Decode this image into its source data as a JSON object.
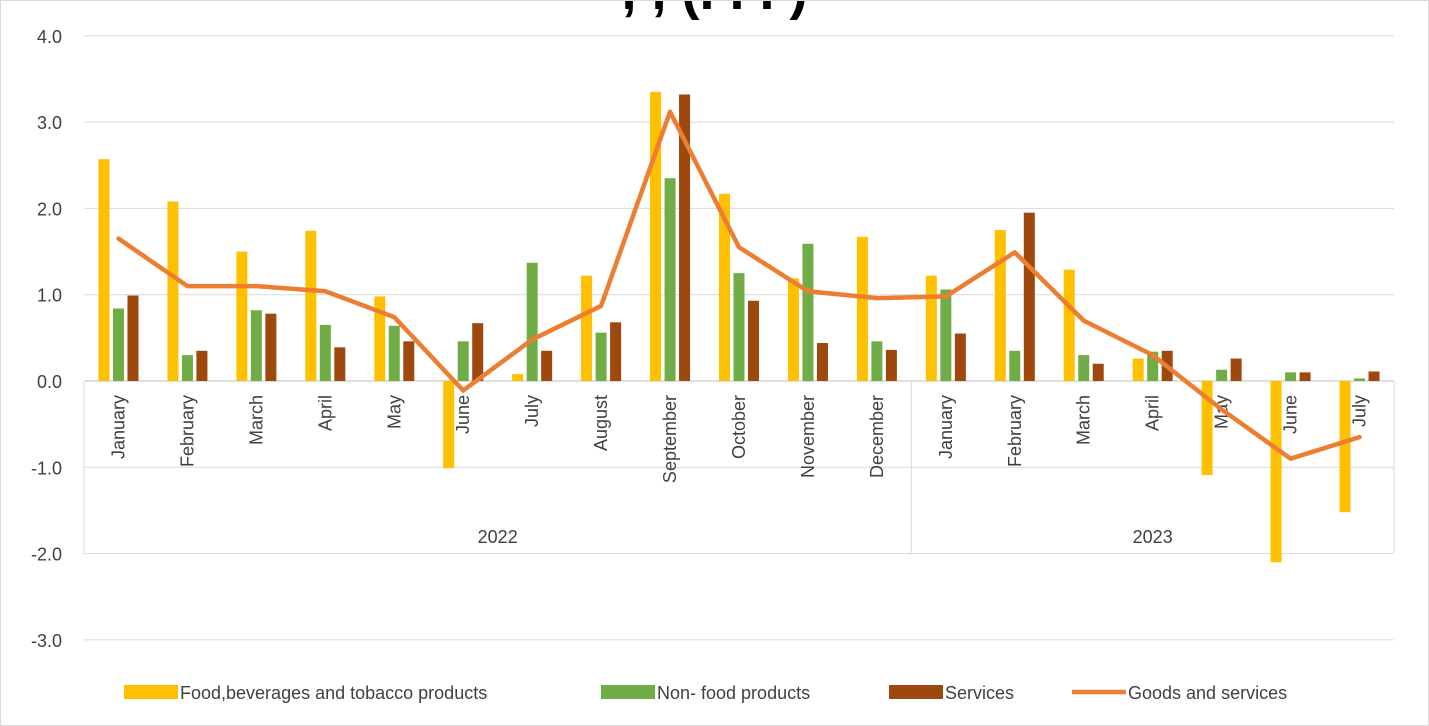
{
  "chart_data": {
    "type": "bar",
    "title": ", , (. . . )",
    "categories": [
      "January",
      "February",
      "March",
      "April",
      "May",
      "June",
      "July",
      "August",
      "September",
      "October",
      "November",
      "December",
      "January",
      "February",
      "March",
      "April",
      "May",
      "June",
      "July"
    ],
    "year_groups": [
      {
        "label": "2022",
        "count": 12
      },
      {
        "label": "2023",
        "count": 7
      }
    ],
    "y_ticks": [
      "4.0",
      "3.0",
      "2.0",
      "1.0",
      "0.0",
      "-1.0",
      "-2.0",
      "-3.0"
    ],
    "ylim": [
      -3,
      4
    ],
    "grid": true,
    "legend_position": "bottom",
    "series": [
      {
        "name": "Food,beverages and tobacco products",
        "type": "bar",
        "color": "#FFC000",
        "values": [
          2.57,
          2.08,
          1.5,
          1.74,
          0.98,
          -1.01,
          0.08,
          1.22,
          3.35,
          2.17,
          1.19,
          1.67,
          1.22,
          1.75,
          1.29,
          0.26,
          -1.09,
          -2.1,
          -1.52
        ]
      },
      {
        "name": "Non- food products",
        "type": "bar",
        "color": "#70AD47",
        "values": [
          0.84,
          0.3,
          0.82,
          0.65,
          0.64,
          0.46,
          1.37,
          0.56,
          2.35,
          1.25,
          1.59,
          0.46,
          1.06,
          0.35,
          0.3,
          0.34,
          0.13,
          0.1,
          0.03
        ]
      },
      {
        "name": "Services",
        "type": "bar",
        "color": "#9E480E",
        "values": [
          0.99,
          0.35,
          0.78,
          0.39,
          0.46,
          0.67,
          0.35,
          0.68,
          3.32,
          0.93,
          0.44,
          0.36,
          0.55,
          1.95,
          0.2,
          0.35,
          0.26,
          0.1,
          0.11
        ]
      },
      {
        "name": "Goods and services",
        "type": "line",
        "color": "#ED7D31",
        "values": [
          1.65,
          1.1,
          1.1,
          1.04,
          0.74,
          -0.11,
          0.48,
          0.87,
          3.12,
          1.55,
          1.04,
          0.96,
          0.98,
          1.49,
          0.7,
          0.3,
          -0.33,
          -0.9,
          -0.65
        ]
      }
    ]
  }
}
